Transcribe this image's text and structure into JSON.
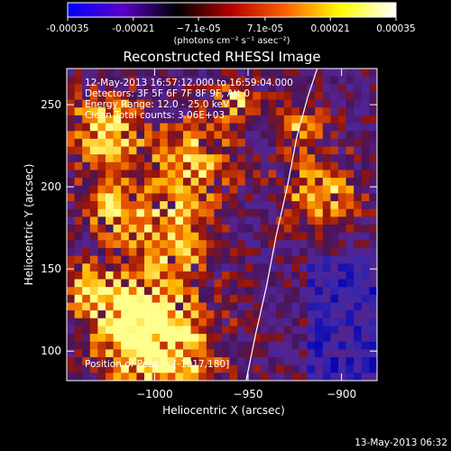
{
  "chart_data": {
    "type": "heatmap",
    "title": "Reconstructed RHESSI Image",
    "xlabel": "Heliocentric X (arcsec)",
    "ylabel": "Heliocentric Y (arcsec)",
    "xlim": [
      -1047,
      -881
    ],
    "ylim": [
      82,
      272
    ],
    "xticks": [
      -1000,
      -950,
      -900
    ],
    "xtick_labels": [
      "−1000",
      "−950",
      "−900"
    ],
    "yticks": [
      100,
      150,
      200,
      250
    ],
    "ytick_labels": [
      "100",
      "150",
      "200",
      "250"
    ],
    "colorbar": {
      "range": [
        -0.00035,
        0.00035
      ],
      "ticks": [
        -0.00035,
        -0.00021,
        -7.1e-05,
        7.1e-05,
        0.00021,
        0.00035
      ],
      "tick_labels": [
        "-0.00035",
        "-0.00021",
        "−7.1e-05",
        "7.1e-05",
        "0.00021",
        "0.00035"
      ],
      "unit_label": "(photons cm⁻² s⁻¹ asec⁻²)",
      "colors": [
        "#0000ff",
        "#5a00c8",
        "#000000",
        "#b40000",
        "#ff6400",
        "#ffff00",
        "#ffffff"
      ]
    },
    "annotations": [
      "12-May-2013 16:57:12.000 to 16:59:04.000",
      "Detectors: 3F 5F 6F 7F 8F 9F, Att 0",
      "Energy Range: 12.0 - 25.0 keV",
      "Clean     Total counts: 3.06E+03"
    ],
    "peak_label": "Position of Peak = [-1017,180]",
    "limb_curve": {
      "x": [
        -951,
        -946,
        -940,
        -935,
        -929,
        -924,
        -918,
        -913
      ],
      "y": [
        82,
        110,
        140,
        170,
        200,
        230,
        255,
        272
      ]
    }
  },
  "footer": {
    "timestamp": "13-May-2013 06:32"
  }
}
